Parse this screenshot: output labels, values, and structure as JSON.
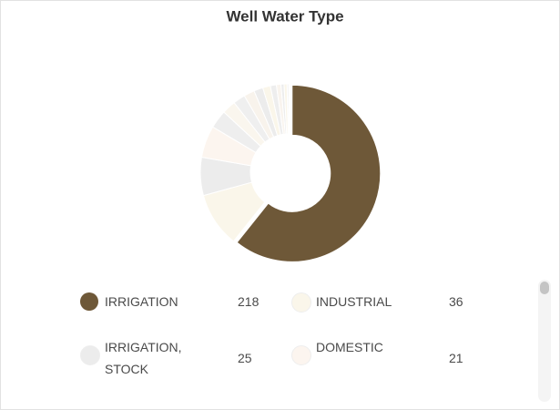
{
  "chart_data": {
    "type": "donut",
    "title": "Well Water Type",
    "categories": [
      "IRRIGATION",
      "INDUSTRIAL",
      "IRRIGATION, STOCK",
      "DOMESTIC",
      null,
      null,
      null,
      null,
      null,
      null,
      null,
      null,
      null,
      null,
      null
    ],
    "values": [
      218,
      36,
      25,
      21,
      12,
      9,
      8,
      7,
      6,
      5,
      4,
      3,
      2,
      2,
      1
    ],
    "colors": [
      "#6e5838",
      "#faf6ea",
      "#ececec",
      "#fcf5ef",
      "#eeeeee",
      "#faf6ee",
      "#efefef",
      "#f8f3ec",
      "#ececec",
      "#faf6ea",
      "#eeeeee",
      "#f9f4ee",
      "#ededed",
      "#faf6ea",
      "#eeeeee"
    ],
    "legend": "bottom"
  }
}
